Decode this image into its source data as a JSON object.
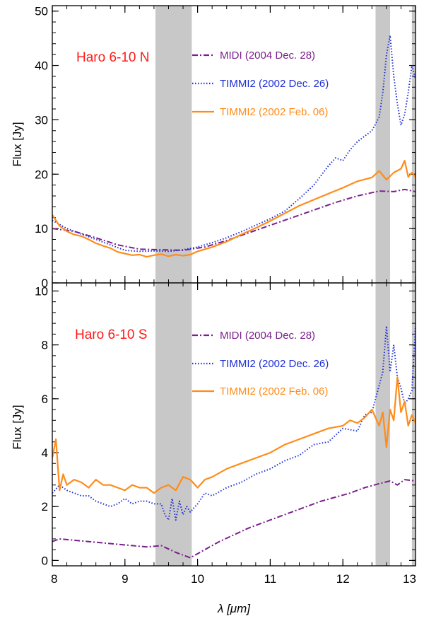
{
  "chart_data": [
    {
      "type": "line",
      "title": "Haro 6-10 N",
      "xlabel": "λ [μm]",
      "ylabel": "Flux [Jy]",
      "xlim": [
        8,
        13
      ],
      "ylim": [
        0,
        51
      ],
      "yticks": [
        0,
        10,
        20,
        30,
        40,
        50
      ],
      "shaded_regions": [
        [
          9.42,
          9.92
        ],
        [
          12.45,
          12.65
        ],
        [
          12.95,
          13.0
        ]
      ],
      "series": [
        {
          "name": "MIDI (2004 Dec. 28)",
          "color": "#7a1f8c",
          "style": "dashdot",
          "x": [
            8.0,
            8.3,
            8.6,
            8.9,
            9.2,
            9.5,
            9.8,
            10.1,
            10.4,
            10.7,
            11.0,
            11.3,
            11.6,
            11.9,
            12.2,
            12.5,
            12.7,
            12.85,
            13.0
          ],
          "y": [
            10.0,
            9.5,
            8.3,
            7.0,
            6.2,
            6.1,
            6.0,
            6.6,
            7.8,
            9.2,
            10.6,
            12.0,
            13.4,
            14.8,
            16.0,
            16.9,
            16.8,
            17.2,
            16.8
          ]
        },
        {
          "name": "TIMMI2 (2002 Dec. 26)",
          "color": "#1f2fd6",
          "style": "dotted",
          "x": [
            8.0,
            8.2,
            8.4,
            8.6,
            8.8,
            9.0,
            9.2,
            9.4,
            9.6,
            9.8,
            10.0,
            10.2,
            10.4,
            10.6,
            10.8,
            11.0,
            11.2,
            11.4,
            11.6,
            11.8,
            11.9,
            12.0,
            12.1,
            12.2,
            12.3,
            12.4,
            12.5,
            12.55,
            12.6,
            12.65,
            12.7,
            12.75,
            12.8,
            12.85,
            12.9,
            12.95,
            13.0
          ],
          "y": [
            11.5,
            10.0,
            9.0,
            8.0,
            7.0,
            6.0,
            5.8,
            5.9,
            5.8,
            6.1,
            6.6,
            7.4,
            8.3,
            9.4,
            10.6,
            11.8,
            13.2,
            15.5,
            18.0,
            21.5,
            23.0,
            22.5,
            24.5,
            26.0,
            27.0,
            28.0,
            30.5,
            35.0,
            42.0,
            45.5,
            38.0,
            33.0,
            29.0,
            31.0,
            35.0,
            40.0,
            37.5
          ]
        },
        {
          "name": "TIMMI2 (2002 Feb. 06)",
          "color": "#ff8c1a",
          "style": "solid",
          "x": [
            8.0,
            8.1,
            8.2,
            8.3,
            8.4,
            8.5,
            8.6,
            8.7,
            8.8,
            8.9,
            9.0,
            9.1,
            9.2,
            9.3,
            9.4,
            9.5,
            9.6,
            9.7,
            9.8,
            9.9,
            10.0,
            10.2,
            10.4,
            10.6,
            10.8,
            11.0,
            11.2,
            11.4,
            11.6,
            11.8,
            12.0,
            12.2,
            12.4,
            12.5,
            12.6,
            12.7,
            12.8,
            12.85,
            12.9,
            12.95,
            13.0
          ],
          "y": [
            12.5,
            10.5,
            9.5,
            8.9,
            8.6,
            8.0,
            7.3,
            6.8,
            6.4,
            5.7,
            5.4,
            5.1,
            5.2,
            4.8,
            5.1,
            5.3,
            4.9,
            5.2,
            5.0,
            5.2,
            5.8,
            6.6,
            7.6,
            8.9,
            10.1,
            11.4,
            12.8,
            14.2,
            15.3,
            16.4,
            17.5,
            18.7,
            19.4,
            20.6,
            19.0,
            20.3,
            21.0,
            22.5,
            19.5,
            20.3,
            19.5
          ]
        }
      ]
    },
    {
      "type": "line",
      "title": "Haro 6-10 S",
      "xlabel": "λ [μm]",
      "ylabel": "Flux [Jy]",
      "xlim": [
        8,
        13
      ],
      "ylim": [
        -0.2,
        10.3
      ],
      "xticks": [
        8,
        9,
        10,
        11,
        12,
        13
      ],
      "yticks": [
        0,
        2,
        4,
        6,
        8,
        10
      ],
      "shaded_regions": [
        [
          9.42,
          9.92
        ],
        [
          12.45,
          12.65
        ],
        [
          12.95,
          13.0
        ]
      ],
      "series": [
        {
          "name": "MIDI (2004 Dec. 28)",
          "color": "#7a1f8c",
          "style": "dashdot",
          "x": [
            8.0,
            8.1,
            8.3,
            8.5,
            8.7,
            8.9,
            9.1,
            9.3,
            9.5,
            9.7,
            9.9,
            10.1,
            10.3,
            10.5,
            10.7,
            10.9,
            11.1,
            11.3,
            11.5,
            11.7,
            11.9,
            12.1,
            12.3,
            12.5,
            12.65,
            12.75,
            12.85,
            13.0
          ],
          "y": [
            0.7,
            0.8,
            0.75,
            0.7,
            0.65,
            0.6,
            0.55,
            0.5,
            0.55,
            0.3,
            0.1,
            0.4,
            0.7,
            0.95,
            1.2,
            1.4,
            1.6,
            1.8,
            2.0,
            2.2,
            2.35,
            2.5,
            2.7,
            2.85,
            2.95,
            2.8,
            3.0,
            2.95
          ]
        },
        {
          "name": "TIMMI2 (2002 Dec. 26)",
          "color": "#1f2fd6",
          "style": "dotted",
          "x": [
            8.0,
            8.1,
            8.2,
            8.3,
            8.4,
            8.5,
            8.6,
            8.7,
            8.8,
            8.9,
            9.0,
            9.1,
            9.2,
            9.3,
            9.4,
            9.5,
            9.55,
            9.6,
            9.65,
            9.7,
            9.75,
            9.8,
            9.85,
            9.9,
            10.0,
            10.1,
            10.2,
            10.4,
            10.6,
            10.8,
            11.0,
            11.2,
            11.4,
            11.6,
            11.8,
            12.0,
            12.2,
            12.3,
            12.4,
            12.5,
            12.55,
            12.6,
            12.65,
            12.7,
            12.75,
            12.8,
            12.85,
            12.9,
            12.95,
            13.0
          ],
          "y": [
            2.5,
            2.8,
            2.6,
            2.5,
            2.4,
            2.4,
            2.2,
            2.1,
            2.0,
            2.1,
            2.3,
            2.1,
            2.2,
            2.2,
            2.1,
            2.1,
            1.7,
            1.5,
            2.3,
            1.5,
            2.2,
            1.7,
            2.0,
            1.8,
            2.1,
            2.5,
            2.4,
            2.7,
            2.9,
            3.2,
            3.4,
            3.7,
            3.9,
            4.3,
            4.4,
            4.9,
            4.8,
            5.4,
            5.5,
            6.5,
            7.0,
            8.7,
            7.0,
            8.0,
            6.8,
            6.4,
            5.8,
            6.0,
            6.3,
            8.7
          ]
        },
        {
          "name": "TIMMI2 (2002 Feb. 06)",
          "color": "#ff8c1a",
          "style": "solid",
          "x": [
            8.0,
            8.05,
            8.1,
            8.15,
            8.2,
            8.3,
            8.4,
            8.5,
            8.6,
            8.7,
            8.8,
            8.9,
            9.0,
            9.1,
            9.2,
            9.3,
            9.4,
            9.5,
            9.6,
            9.7,
            9.8,
            9.9,
            10.0,
            10.1,
            10.2,
            10.4,
            10.6,
            10.8,
            11.0,
            11.2,
            11.4,
            11.6,
            11.8,
            12.0,
            12.1,
            12.2,
            12.3,
            12.4,
            12.5,
            12.55,
            12.6,
            12.65,
            12.7,
            12.75,
            12.8,
            12.85,
            12.9,
            12.95,
            13.0
          ],
          "y": [
            3.8,
            4.5,
            2.6,
            3.2,
            2.8,
            3.0,
            2.9,
            2.7,
            3.0,
            2.8,
            2.8,
            2.7,
            2.6,
            2.8,
            2.7,
            2.7,
            2.5,
            2.7,
            2.8,
            2.6,
            3.1,
            3.0,
            2.7,
            3.0,
            3.1,
            3.4,
            3.6,
            3.8,
            4.0,
            4.3,
            4.5,
            4.7,
            4.9,
            5.0,
            5.2,
            5.1,
            5.3,
            5.6,
            5.0,
            5.5,
            4.2,
            5.6,
            5.2,
            6.8,
            5.5,
            5.9,
            5.0,
            5.4,
            5.1
          ]
        }
      ]
    }
  ]
}
